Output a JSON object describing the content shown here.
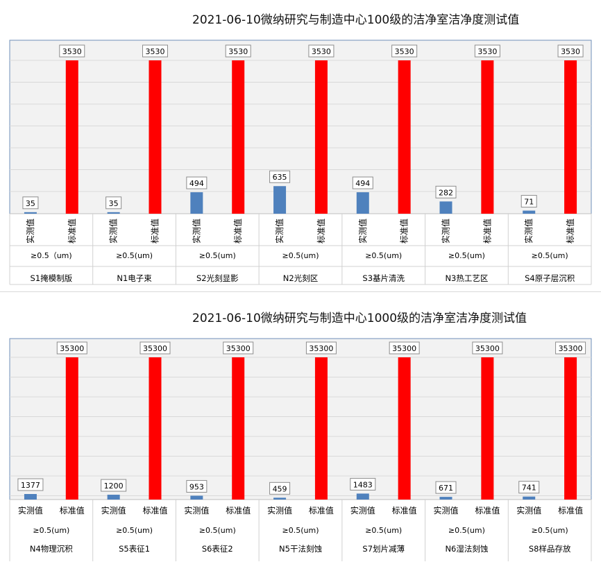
{
  "chart_data": [
    {
      "type": "bar",
      "title": "2021-06-10微纳研究与制造中心100级的洁净室洁净度测试值",
      "series": [
        {
          "name": "实测值",
          "color": "#4f81bd",
          "values": [
            35,
            35,
            494,
            635,
            494,
            282,
            71
          ]
        },
        {
          "name": "标准值",
          "color": "#ff0000",
          "values": [
            3530,
            3530,
            3530,
            3530,
            3530,
            3530,
            3530
          ]
        }
      ],
      "bar_labels": [
        "实测值",
        "标准值"
      ],
      "particle_sizes": [
        "≥0.5（um)",
        "≥0.5(um)",
        "≥0.5(um)",
        "≥0.5(um)",
        "≥0.5(um)",
        "≥0.5(um)",
        "≥0.5(um)"
      ],
      "categories": [
        "S1掩模制版",
        "N1电子束",
        "S2光刻显影",
        "N2光刻区",
        "S3基片清洗",
        "N3热工艺区",
        "S4原子层沉积"
      ],
      "ylim": [
        0,
        3530
      ],
      "grid": true,
      "rotated_bar_labels": true
    },
    {
      "type": "bar",
      "title": "2021-06-10微纳研究与制造中心1000级的洁净室洁净度测试值",
      "series": [
        {
          "name": "实测值",
          "color": "#4f81bd",
          "values": [
            1377,
            1200,
            953,
            459,
            1483,
            671,
            741
          ]
        },
        {
          "name": "标准值",
          "color": "#ff0000",
          "values": [
            35300,
            35300,
            35300,
            35300,
            35300,
            35300,
            35300
          ]
        }
      ],
      "bar_labels": [
        "实测值",
        "标准值"
      ],
      "particle_sizes": [
        "≥0.5(um)",
        "≥0.5(um)",
        "≥0.5(um)",
        "≥0.5(um)",
        "≥0.5(um)",
        "≥0.5(um)",
        "≥0.5(um)"
      ],
      "categories": [
        "N4物理沉积",
        "S5表征1",
        "S6表征2",
        "N5干法刻蚀",
        "S7划片减薄",
        "N6湿法刻蚀",
        "S8样品存放"
      ],
      "ylim": [
        0,
        35300
      ],
      "grid": true,
      "rotated_bar_labels": false
    }
  ]
}
